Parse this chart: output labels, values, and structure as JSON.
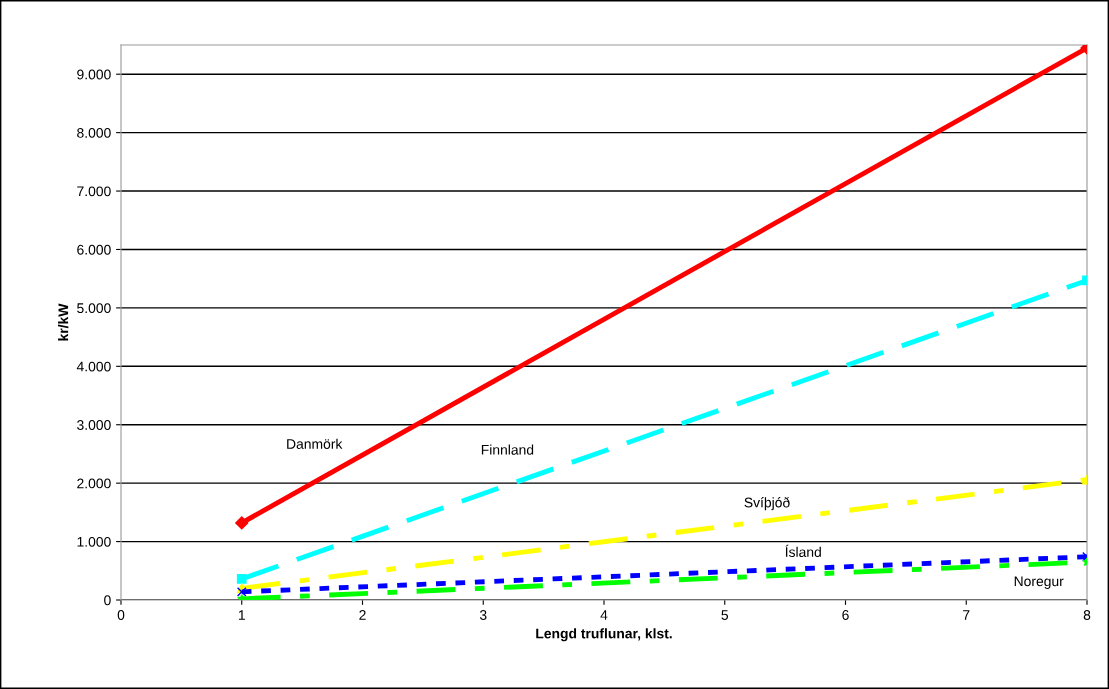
{
  "chart_data": {
    "type": "line",
    "xlabel": "Lengd truflunar, klst.",
    "ylabel": "kr/kW",
    "x": [
      1,
      8
    ],
    "series": [
      {
        "name": "Danmörk",
        "color": "#ff0000",
        "values": [
          1320,
          9450
        ],
        "line_style": "solid",
        "marker": "diamond"
      },
      {
        "name": "Finnland",
        "color": "#00ffff",
        "values": [
          360,
          5470
        ],
        "line_style": "dashed",
        "marker": "square"
      },
      {
        "name": "Svíþjóð",
        "color": "#ffff00",
        "values": [
          200,
          2060
        ],
        "line_style": "dashdot",
        "marker": "triangle"
      },
      {
        "name": "Ísland",
        "color": "#0000ff",
        "values": [
          140,
          740
        ],
        "line_style": "dotted",
        "marker": "cross"
      },
      {
        "name": "Noregur",
        "color": "#00ff00",
        "values": [
          20,
          650
        ],
        "line_style": "dashdot",
        "marker": "star"
      }
    ],
    "xlim": [
      0,
      8
    ],
    "xticks": [
      0,
      1,
      2,
      3,
      4,
      5,
      6,
      7,
      8
    ],
    "ylim": [
      0,
      9500
    ],
    "yticks": [
      {
        "value": 0,
        "label": "0"
      },
      {
        "value": 1000,
        "label": "1.000"
      },
      {
        "value": 2000,
        "label": "2.000"
      },
      {
        "value": 3000,
        "label": "3.000"
      },
      {
        "value": 4000,
        "label": "4.000"
      },
      {
        "value": 5000,
        "label": "5.000"
      },
      {
        "value": 6000,
        "label": "6.000"
      },
      {
        "value": 7000,
        "label": "7.000"
      },
      {
        "value": 8000,
        "label": "8.000"
      },
      {
        "value": 9000,
        "label": "9.000"
      }
    ],
    "grid": "y",
    "legend": false
  }
}
